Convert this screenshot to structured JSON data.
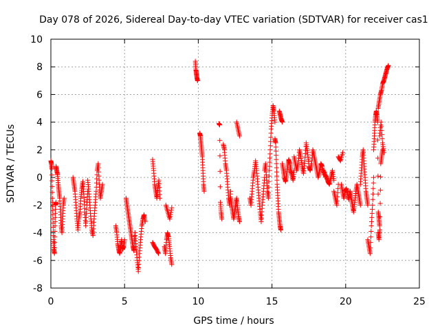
{
  "chart_data": {
    "type": "scatter",
    "title": "Day 078 of 2026, Sidereal Day-to-day VTEC variation (SDTVAR) for receiver cas1",
    "xlabel": "GPS time / hours",
    "ylabel": "SDTVAR / TECUs",
    "xlim": [
      0,
      25
    ],
    "ylim": [
      -8,
      10
    ],
    "xticks": [
      0,
      5,
      10,
      15,
      20,
      25
    ],
    "yticks": [
      -8,
      -6,
      -4,
      -2,
      0,
      2,
      4,
      6,
      8,
      10
    ],
    "xtick_labels": [
      "0",
      "5",
      "10",
      "15",
      "20",
      "25"
    ],
    "ytick_labels": [
      "-8",
      "-6",
      "-4",
      "-2",
      "0",
      "2",
      "4",
      "6",
      "8",
      "10"
    ],
    "grid": true,
    "marker": "+",
    "color": "#ff0000",
    "series": [
      {
        "name": "SDTVAR",
        "segments": [
          {
            "x0": 0.0,
            "x1": 0.35,
            "y": [
              1.2,
              1.0,
              0.6,
              -1.5,
              -3.0,
              -4.5,
              -5.2,
              -5.5,
              -3.5,
              -2.0,
              -1.8
            ]
          },
          {
            "x0": 0.35,
            "x1": 0.9,
            "y": [
              0.8,
              0.5,
              0.2,
              -0.5,
              -1.0,
              -1.5,
              -2.5,
              -3.5,
              -4.0,
              -3.0,
              -2.0,
              -1.5
            ]
          },
          {
            "x0": 1.5,
            "x1": 2.5,
            "y": [
              0.0,
              -0.5,
              -1.0,
              -2.0,
              -3.0,
              -3.8,
              -3.0,
              -2.5,
              -1.5,
              -0.8,
              -0.3,
              -1.2,
              -2.5,
              -3.5,
              -2.0,
              -1.0
            ]
          },
          {
            "x0": 2.5,
            "x1": 3.5,
            "y": [
              -0.2,
              -1.0,
              -2.0,
              -3.0,
              -3.8,
              -4.2,
              -3.0,
              -2.0,
              -1.0,
              0.5,
              1.0,
              -0.5,
              -1.5,
              -1.0,
              -0.5
            ]
          },
          {
            "x0": 4.4,
            "x1": 5.0,
            "y": [
              -3.5,
              -4.0,
              -4.8,
              -5.2,
              -5.5,
              -5.0,
              -4.5,
              -5.2,
              -5.0,
              -4.5
            ]
          },
          {
            "x0": 5.1,
            "x1": 5.7,
            "y": [
              -1.5,
              -2.0,
              -2.5,
              -3.0,
              -3.5,
              -4.0,
              -4.5,
              -5.0,
              -5.3,
              -4.0
            ]
          },
          {
            "x0": 5.7,
            "x1": 6.4,
            "y": [
              -4.0,
              -5.0,
              -6.0,
              -6.8,
              -5.5,
              -4.5,
              -3.5,
              -3.0,
              -2.7,
              -3.2
            ]
          },
          {
            "x0": 6.9,
            "x1": 7.4,
            "y": [
              1.3,
              0.5,
              -0.5,
              -1.0,
              -1.5,
              -0.8,
              -0.2,
              -1.5
            ]
          },
          {
            "x0": 6.9,
            "x1": 7.3,
            "y": [
              -4.7,
              -5.0,
              -5.2,
              -5.5
            ]
          },
          {
            "x0": 7.7,
            "x1": 8.2,
            "y": [
              -5.0,
              -5.5,
              -4.5,
              -4.0,
              -4.3,
              -5.0,
              -5.8,
              -6.3
            ]
          },
          {
            "x0": 7.8,
            "x1": 8.2,
            "y": [
              -2.0,
              -2.5,
              -3.0,
              -2.2
            ]
          },
          {
            "x0": 9.8,
            "x1": 9.95,
            "y": [
              8.4,
              7.8,
              7.5,
              7.2,
              7.0
            ]
          },
          {
            "x0": 10.1,
            "x1": 10.4,
            "y": [
              3.2,
              3.0,
              2.5,
              2.0,
              1.5,
              0.5,
              -0.5,
              -1.0
            ]
          },
          {
            "x0": 11.4,
            "x1": 11.6,
            "y": [
              3.9,
              3.8,
              -1.8,
              -2.5,
              -3.0
            ]
          },
          {
            "x0": 11.7,
            "x1": 12.2,
            "y": [
              2.4,
              2.0,
              1.0,
              0.5,
              -0.5,
              -1.5,
              -2.0,
              -1.0
            ]
          },
          {
            "x0": 12.2,
            "x1": 12.8,
            "y": [
              -1.5,
              -2.0,
              -2.5,
              -3.0,
              -2.5,
              -2.0,
              -1.5,
              -2.2,
              -2.8,
              -3.2
            ]
          },
          {
            "x0": 12.6,
            "x1": 12.8,
            "y": [
              4.0,
              3.5,
              3.0
            ]
          },
          {
            "x0": 13.5,
            "x1": 14.5,
            "y": [
              -1.5,
              -2.0,
              -1.0,
              0.0,
              0.5,
              1.2,
              0.5,
              -0.5,
              -1.5,
              -2.5,
              -3.2,
              -2.0,
              -1.0,
              0.0
            ]
          },
          {
            "x0": 14.5,
            "x1": 15.2,
            "y": [
              0.5,
              1.0,
              0.0,
              -1.0,
              -1.5,
              0.5,
              2.0,
              3.5,
              4.5,
              5.2,
              4.8,
              4.0
            ]
          },
          {
            "x0": 15.2,
            "x1": 15.6,
            "y": [
              2.8,
              2.5,
              1.0,
              -0.5,
              -1.5,
              -2.5,
              -3.0,
              -3.5,
              -3.8
            ]
          },
          {
            "x0": 15.5,
            "x1": 15.7,
            "y": [
              4.8,
              4.5,
              4.2,
              4.0
            ]
          },
          {
            "x0": 15.7,
            "x1": 16.5,
            "y": [
              1.0,
              0.5,
              0.0,
              -0.3,
              0.2,
              0.8,
              1.3,
              1.0,
              0.5,
              0.2,
              -0.2,
              0.5
            ]
          },
          {
            "x0": 16.5,
            "x1": 17.5,
            "y": [
              1.5,
              1.0,
              0.5,
              1.0,
              2.0,
              1.5,
              0.8,
              0.3,
              1.2,
              2.5,
              1.8,
              1.0
            ]
          },
          {
            "x0": 17.5,
            "x1": 18.5,
            "y": [
              0.8,
              0.5,
              1.0,
              2.0,
              1.5,
              1.0,
              0.5,
              0.0,
              0.5,
              1.0,
              0.8,
              0.2
            ]
          },
          {
            "x0": 18.5,
            "x1": 19.2,
            "y": [
              0.5,
              0.2,
              0.0,
              -0.3,
              -0.5,
              0.0,
              0.5,
              -0.2
            ]
          },
          {
            "x0": 19.2,
            "x1": 19.5,
            "y": [
              -1.0,
              -1.5,
              -2.0,
              -0.5
            ]
          },
          {
            "x0": 19.5,
            "x1": 19.8,
            "y": [
              1.5,
              1.2,
              1.8
            ]
          },
          {
            "x0": 19.7,
            "x1": 20.3,
            "y": [
              -0.5,
              -1.0,
              -1.5,
              -1.0,
              -0.8,
              -1.2,
              -1.6,
              -1.0
            ]
          },
          {
            "x0": 20.3,
            "x1": 21.0,
            "y": [
              -1.0,
              -1.5,
              -2.0,
              -2.5,
              -1.8,
              -1.0,
              -0.5,
              -1.0,
              -1.5,
              -2.0
            ]
          },
          {
            "x0": 21.0,
            "x1": 21.5,
            "y": [
              -0.5,
              0.5,
              1.5,
              2.0,
              1.0,
              0.0,
              -1.0,
              -1.5,
              -2.0
            ]
          },
          {
            "x0": 21.5,
            "x1": 21.9,
            "y": [
              -4.5,
              -5.0,
              -5.5,
              -3.5,
              -2.0,
              0.0
            ]
          },
          {
            "x0": 21.9,
            "x1": 22.3,
            "y": [
              2.0,
              3.0,
              4.0,
              4.5,
              4.8,
              4.5,
              4.0,
              -2.5,
              -3.0,
              -3.5
            ]
          },
          {
            "x0": 22.2,
            "x1": 22.5,
            "y": [
              -4.0,
              -4.5,
              -3.8,
              1.0,
              1.5,
              2.0
            ]
          },
          {
            "x0": 22.2,
            "x1": 22.9,
            "y": [
              5.0,
              5.5,
              6.0,
              6.3,
              6.8,
              7.0,
              7.3,
              7.6,
              7.9,
              8.1
            ]
          },
          {
            "x0": 22.3,
            "x1": 22.6,
            "y": [
              3.0,
              4.0,
              2.5,
              1.8
            ]
          }
        ]
      }
    ]
  }
}
